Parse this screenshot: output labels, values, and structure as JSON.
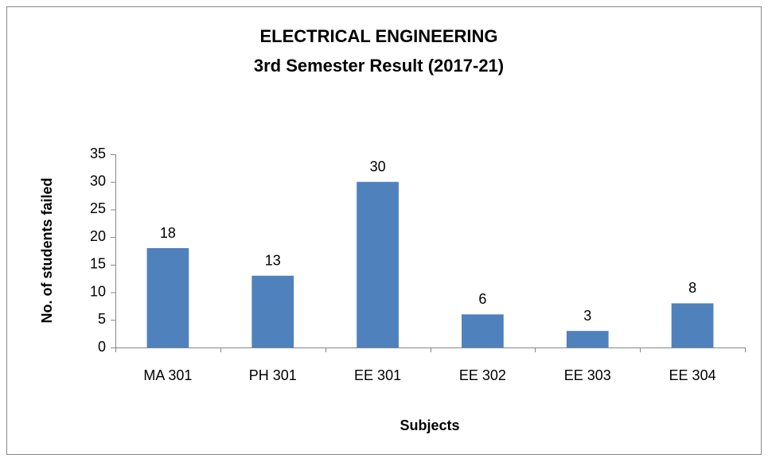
{
  "chart_data": {
    "type": "bar",
    "title": "ELECTRICAL ENGINEERING",
    "subtitle": "3rd Semester Result (2017-21)",
    "x_label": "Subjects",
    "y_label": "No. of students failed",
    "categories": [
      "MA 301",
      "PH 301",
      "EE 301",
      "EE 302",
      "EE 303",
      "EE 304"
    ],
    "values": [
      18,
      13,
      30,
      6,
      3,
      8
    ],
    "color": "#4f81bd",
    "ylim": [
      0,
      35
    ],
    "yticks": [
      0,
      5,
      10,
      15,
      20,
      25,
      30,
      35
    ],
    "grid": false
  }
}
